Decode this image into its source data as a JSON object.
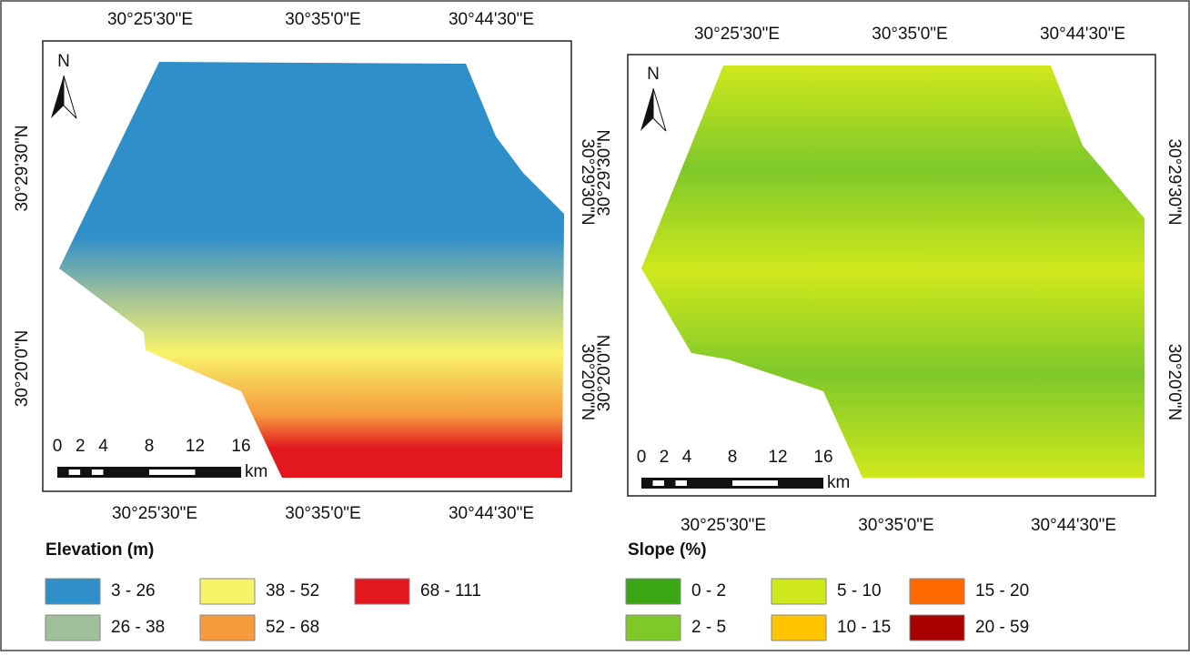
{
  "maps": [
    {
      "top_labels": [
        "30°25'30\"E",
        "30°35'0\"E",
        "30°44'30\"E"
      ],
      "bottom_labels": [
        "30°25'30\"E",
        "30°35'0\"E",
        "30°44'30\"E"
      ],
      "left_labels": [
        "30°29'30\"N",
        "30°20'0\"N"
      ],
      "right_labels": [
        "30°29'30\"N",
        "30°20'0\"N"
      ],
      "north": "N",
      "scale": [
        "0",
        "2",
        "4",
        "8",
        "12",
        "16"
      ],
      "scale_unit": "km",
      "legend": {
        "title": "Elevation (m)",
        "items": [
          {
            "label": "3 - 26",
            "color": "#2e8fc9"
          },
          {
            "label": "26 - 38",
            "color": "#9fbf9a"
          },
          {
            "label": "38 - 52",
            "color": "#f8f46a"
          },
          {
            "label": "52 - 68",
            "color": "#f59a3d"
          },
          {
            "label": "68 - 111",
            "color": "#e3181f"
          }
        ]
      }
    },
    {
      "top_labels": [
        "30°25'30\"E",
        "30°35'0\"E",
        "30°44'30\"E"
      ],
      "bottom_labels": [
        "30°25'30\"E",
        "30°35'0\"E",
        "30°44'30\"E"
      ],
      "left_labels": [
        "30°29'30\"N",
        "30°20'0\"N"
      ],
      "right_labels": [
        "30°29'30\"N",
        "30°20'0\"N"
      ],
      "north": "N",
      "scale": [
        "0",
        "2",
        "4",
        "8",
        "12",
        "16"
      ],
      "scale_unit": "km",
      "legend": {
        "title": "Slope (%)",
        "items": [
          {
            "label": "0 - 2",
            "color": "#3aa614"
          },
          {
            "label": "2 - 5",
            "color": "#7ec82a"
          },
          {
            "label": "5 - 10",
            "color": "#cfe81c"
          },
          {
            "label": "10 - 15",
            "color": "#ffc400"
          },
          {
            "label": "15 - 20",
            "color": "#ff6a00"
          },
          {
            "label": "20 - 59",
            "color": "#a80000"
          }
        ]
      }
    }
  ]
}
